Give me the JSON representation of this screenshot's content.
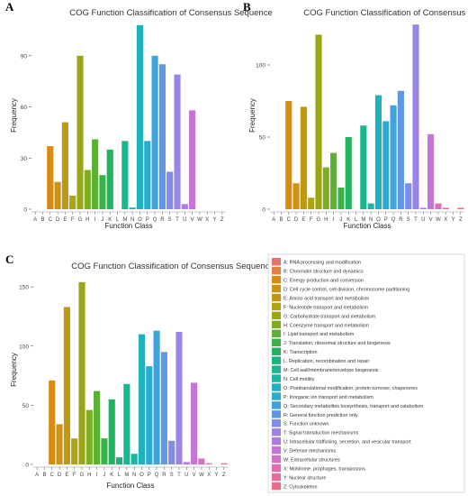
{
  "categories": [
    "A",
    "B",
    "C",
    "D",
    "E",
    "F",
    "G",
    "H",
    "I",
    "J",
    "K",
    "L",
    "M",
    "N",
    "O",
    "P",
    "Q",
    "R",
    "S",
    "T",
    "U",
    "V",
    "W",
    "X",
    "Y",
    "Z"
  ],
  "colors": [
    "#E8736B",
    "#E47E43",
    "#D98C14",
    "#CC9414",
    "#BE9A14",
    "#AEA315",
    "#99A717",
    "#7DAE21",
    "#5BB232",
    "#3CB34A",
    "#20B45E",
    "#17B577",
    "#1AB68E",
    "#1DB5A5",
    "#20B2BC",
    "#2AACCF",
    "#3FA3DC",
    "#5E97E5",
    "#7D8DE8",
    "#9A84E6",
    "#B27BE2",
    "#C675D6",
    "#D76FC4",
    "#E46CB1",
    "#EA6C9C",
    "#EC6E86"
  ],
  "chart_data": [
    {
      "panel": "A",
      "type": "bar",
      "title": "COG Function Classification of Consensus Sequence",
      "xlabel": "Function Class",
      "ylabel": "Frequency",
      "ylim": [
        0,
        110
      ],
      "yticks": [
        0,
        30,
        60,
        90
      ],
      "categories": [
        "A",
        "B",
        "C",
        "D",
        "E",
        "F",
        "G",
        "H",
        "I",
        "J",
        "K",
        "L",
        "M",
        "N",
        "O",
        "P",
        "Q",
        "R",
        "S",
        "T",
        "U",
        "V",
        "W",
        "X",
        "Y",
        "Z"
      ],
      "values": [
        0,
        0,
        37,
        16,
        51,
        8,
        90,
        23,
        41,
        20,
        35,
        0,
        40,
        1,
        108,
        40,
        90,
        85,
        22,
        79,
        3,
        58,
        0,
        0,
        0,
        0
      ],
      "grid": false
    },
    {
      "panel": "B",
      "type": "bar",
      "title": "COG Function Classification of Consensus Sequence",
      "xlabel": "Function Class",
      "ylabel": "Frequency",
      "ylim": [
        0,
        130
      ],
      "yticks": [
        0,
        50,
        100
      ],
      "categories": [
        "A",
        "B",
        "C",
        "D",
        "E",
        "F",
        "G",
        "H",
        "I",
        "J",
        "K",
        "L",
        "M",
        "N",
        "O",
        "P",
        "Q",
        "R",
        "S",
        "T",
        "U",
        "V",
        "W",
        "X",
        "Y",
        "Z"
      ],
      "values": [
        0,
        0,
        75,
        18,
        71,
        8,
        121,
        29,
        39,
        15,
        50,
        0,
        58,
        4,
        79,
        61,
        72,
        82,
        18,
        128,
        1,
        52,
        4,
        1,
        0,
        1
      ],
      "grid": false
    },
    {
      "panel": "C",
      "type": "bar",
      "title": "COG Function Classification of Consensus Sequence",
      "xlabel": "Function Class",
      "ylabel": "Frequency",
      "ylim": [
        0,
        160
      ],
      "yticks": [
        0,
        50,
        100,
        150
      ],
      "categories": [
        "A",
        "B",
        "C",
        "D",
        "E",
        "F",
        "G",
        "H",
        "I",
        "J",
        "K",
        "L",
        "M",
        "N",
        "O",
        "P",
        "Q",
        "R",
        "S",
        "T",
        "U",
        "V",
        "W",
        "X",
        "Y",
        "Z"
      ],
      "values": [
        0,
        0,
        71,
        34,
        133,
        22,
        154,
        46,
        62,
        22,
        55,
        6,
        68,
        9,
        110,
        83,
        113,
        95,
        20,
        112,
        2,
        69,
        5,
        1,
        0,
        1
      ],
      "grid": false
    }
  ],
  "legend": [
    "A: RNA processing and modification",
    "B: Chromatin structure and dynamics",
    "C: Energy production and conversion",
    "D: Cell cycle control, cell division, chromosome partitioning",
    "E: Amino acid transport and metabolism",
    "F: Nucleotide transport and metabolism",
    "G: Carbohydrate transport and metabolism",
    "H: Coenzyme transport and metabolism",
    "I: Lipid transport and metabolism",
    "J: Translation, ribosomal structure and biogenesis",
    "K: Transcription",
    "L: Replication, recombination and repair",
    "M: Cell wall/membrane/envelope biogenesis",
    "N: Cell motility",
    "O: Posttranslational modification, protein turnover, chaperones",
    "P: Inorganic ion transport and metabolism",
    "Q: Secondary metabolites biosynthesis, transport and catabolism",
    "R: General function prediction only",
    "S: Function unknown",
    "T: Signal transduction mechanisms",
    "U: Intracellular trafficking, secretion, and vesicular transport",
    "V: Defense mechanisms",
    "W: Extracellular structures",
    "X: Mobilome: prophages, transposons",
    "Y: Nuclear structure",
    "Z: Cytoskeleton"
  ]
}
